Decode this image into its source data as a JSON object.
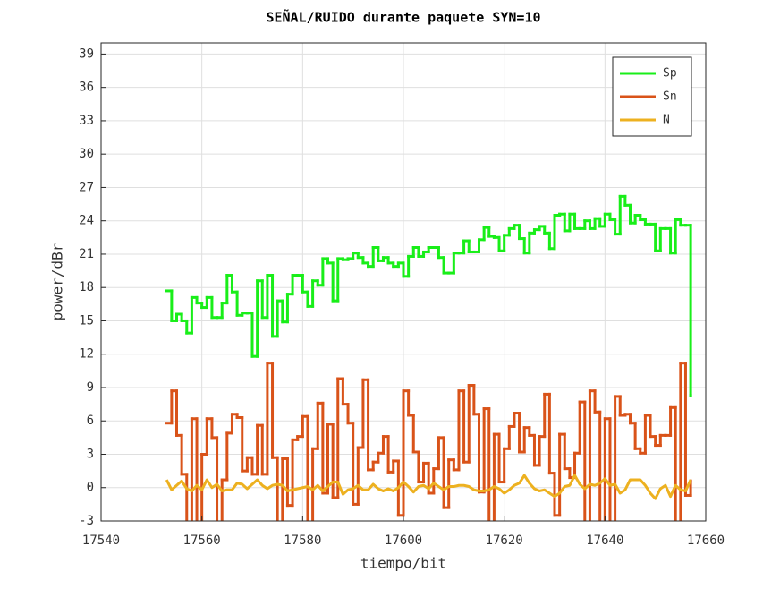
{
  "chart_data": {
    "type": "line",
    "step": true,
    "title": "SEÑAL/RUIDO durante paquete SYN=10",
    "x_label": "tiempo/bit",
    "y_label": "power/dBr",
    "x": [
      17553,
      17554,
      17555,
      17556,
      17557,
      17558,
      17559,
      17560,
      17561,
      17562,
      17563,
      17564,
      17565,
      17566,
      17567,
      17568,
      17569,
      17570,
      17571,
      17572,
      17573,
      17574,
      17575,
      17576,
      17577,
      17578,
      17579,
      17580,
      17581,
      17582,
      17583,
      17584,
      17585,
      17586,
      17587,
      17588,
      17589,
      17590,
      17591,
      17592,
      17593,
      17594,
      17595,
      17596,
      17597,
      17598,
      17599,
      17600,
      17601,
      17602,
      17603,
      17604,
      17605,
      17606,
      17607,
      17608,
      17609,
      17610,
      17611,
      17612,
      17613,
      17614,
      17615,
      17616,
      17617,
      17618,
      17619,
      17620,
      17621,
      17622,
      17623,
      17624,
      17625,
      17626,
      17627,
      17628,
      17629,
      17630,
      17631,
      17632,
      17633,
      17634,
      17635,
      17636,
      17637,
      17638,
      17639,
      17640,
      17641,
      17642,
      17643,
      17644,
      17645,
      17646,
      17647,
      17648,
      17649,
      17650,
      17651,
      17652,
      17653,
      17654,
      17655,
      17656,
      17657
    ],
    "series": [
      {
        "name": "Sp",
        "color": "#19ee19",
        "step": true,
        "values": [
          17.7,
          15,
          15.6,
          15,
          13.9,
          17.1,
          16.6,
          16.2,
          17.1,
          15.3,
          15.3,
          16.6,
          19.1,
          17.6,
          15.5,
          15.7,
          15.7,
          11.8,
          18.6,
          15.3,
          19.1,
          13.6,
          16.8,
          14.9,
          17.4,
          19.1,
          19.1,
          17.6,
          16.3,
          18.6,
          18.2,
          20.6,
          20.2,
          16.8,
          20.6,
          20.5,
          20.6,
          21.1,
          20.7,
          20.2,
          19.9,
          21.6,
          20.4,
          20.7,
          20.2,
          19.9,
          20.2,
          19,
          20.8,
          21.6,
          20.8,
          21.2,
          21.6,
          21.6,
          20.7,
          19.3,
          19.3,
          21.1,
          21.1,
          22.2,
          21.2,
          21.2,
          22.3,
          23.4,
          22.6,
          22.5,
          21.3,
          22.7,
          23.3,
          23.6,
          22.4,
          21.1,
          22.9,
          23.2,
          23.5,
          22.9,
          21.5,
          24.5,
          24.6,
          23.1,
          24.6,
          23.3,
          23.3,
          24,
          23.3,
          24.2,
          23.5,
          24.6,
          24.1,
          22.8,
          26.2,
          25.4,
          23.8,
          24.5,
          24.1,
          23.7,
          23.7,
          21.3,
          23.3,
          23.3,
          21.1,
          24.1,
          23.6,
          23.6,
          8.3
        ]
      },
      {
        "name": "Sn",
        "color": "#d95319",
        "step": true,
        "values": [
          5.8,
          8.7,
          4.7,
          1.2,
          -3.5,
          6.2,
          -3.5,
          3,
          6.2,
          4.5,
          -3.5,
          0.7,
          4.9,
          6.6,
          6.3,
          1.5,
          2.7,
          1.2,
          5.6,
          1.2,
          11.2,
          2.7,
          -3.5,
          2.6,
          -1.6,
          4.3,
          4.6,
          6.4,
          -3.5,
          3.5,
          7.6,
          -0.5,
          5.7,
          -0.9,
          9.8,
          7.5,
          5.8,
          -1.5,
          3.6,
          9.7,
          1.6,
          2.3,
          3.1,
          4.6,
          1.4,
          2.4,
          -2.5,
          8.7,
          6.5,
          3.2,
          0.5,
          2.2,
          -0.5,
          1.7,
          4.5,
          -1.8,
          2.5,
          1.6,
          8.7,
          2.3,
          9.2,
          6.6,
          -0.4,
          7.1,
          -3.5,
          4.8,
          0.5,
          3.5,
          5.5,
          6.7,
          3.2,
          5.4,
          4.7,
          2,
          4.6,
          8.4,
          1.3,
          -2.5,
          4.8,
          1.7,
          0.9,
          3.1,
          7.7,
          -3.5,
          8.7,
          6.8,
          -3.5,
          6.2,
          -3.5,
          8.2,
          6.5,
          6.6,
          5.8,
          3.5,
          3.1,
          6.5,
          4.6,
          3.8,
          4.7,
          4.7,
          7.2,
          -3.5,
          11.2,
          -0.7,
          0.6
        ]
      },
      {
        "name": "N",
        "color": "#edb120",
        "step": false,
        "values": [
          0.7,
          -0.2,
          0.2,
          0.6,
          -0.1,
          -0.3,
          0.2,
          -0.2,
          0.7,
          0,
          0.3,
          -0.3,
          -0.2,
          -0.2,
          0.4,
          0.3,
          -0.1,
          0.3,
          0.7,
          0.2,
          -0.1,
          0.2,
          0.3,
          0.2,
          -0.3,
          -0.2,
          -0.1,
          0,
          0.1,
          -0.2,
          0.2,
          -0.3,
          0.1,
          0.5,
          0.5,
          -0.6,
          -0.2,
          -0.1,
          0.2,
          -0.2,
          -0.2,
          0.3,
          -0.1,
          -0.3,
          -0.1,
          -0.3,
          0,
          0.5,
          0.1,
          -0.4,
          0.1,
          0.2,
          -0.1,
          0.4,
          0.1,
          -0.2,
          0.1,
          0.1,
          0.2,
          0.2,
          0.1,
          -0.2,
          -0.3,
          -0.3,
          -0.2,
          0.1,
          -0.1,
          -0.5,
          -0.2,
          0.2,
          0.4,
          1.1,
          0.4,
          -0.1,
          -0.3,
          -0.2,
          -0.5,
          -0.8,
          -0.5,
          0.1,
          0.2,
          1.1,
          0.3,
          -0.1,
          0.3,
          0.2,
          0.4,
          0.8,
          0.2,
          0.3,
          -0.5,
          -0.2,
          0.7,
          0.7,
          0.7,
          0.2,
          -0.5,
          -1,
          -0.1,
          0.2,
          -0.8,
          0.2,
          -0.2,
          -0.3,
          0.7
        ]
      }
    ],
    "xlim": [
      17540,
      17660
    ],
    "xticks": [
      17540,
      17560,
      17580,
      17600,
      17620,
      17640,
      17660
    ],
    "ylim": [
      -3,
      40
    ],
    "yticks": [
      -3,
      0,
      3,
      6,
      9,
      12,
      15,
      18,
      21,
      24,
      27,
      30,
      33,
      36,
      39
    ],
    "grid": true,
    "legend": "upper-right"
  }
}
